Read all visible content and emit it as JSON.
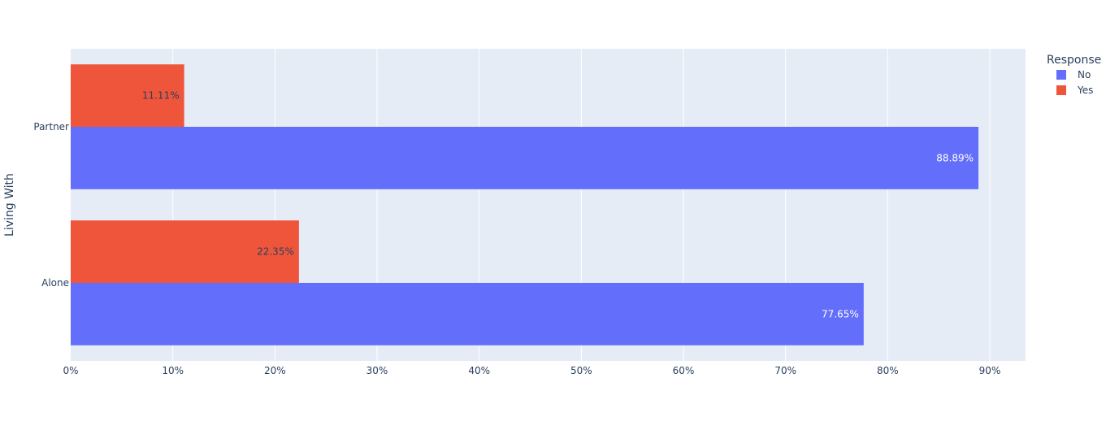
{
  "chart_data": {
    "type": "bar",
    "orientation": "horizontal",
    "barmode": "group",
    "categories": [
      "Alone",
      "Partner"
    ],
    "ylabel": "Living With",
    "xlabel": "",
    "xlim": [
      0,
      93.5
    ],
    "x_tick_values": [
      0,
      10,
      20,
      30,
      40,
      50,
      60,
      70,
      80,
      90
    ],
    "x_tick_labels": [
      "0%",
      "10%",
      "20%",
      "30%",
      "40%",
      "50%",
      "60%",
      "70%",
      "80%",
      "90%"
    ],
    "grid": true,
    "legend": {
      "title": "Response",
      "placement": "top-right"
    },
    "series": [
      {
        "name": "No",
        "color": "#636efa",
        "values": [
          77.65,
          88.89
        ],
        "labels": [
          "77.65%",
          "88.89%"
        ],
        "label_color": "#ffffff"
      },
      {
        "name": "Yes",
        "color": "#ef553b",
        "values": [
          22.35,
          11.11
        ],
        "labels": [
          "22.35%",
          "11.11%"
        ],
        "label_color": "#2a3f5f"
      }
    ],
    "colors": {
      "plot_bg": "#e5ecf6",
      "grid": "#ffffff",
      "text": "#2a3f5f"
    }
  }
}
